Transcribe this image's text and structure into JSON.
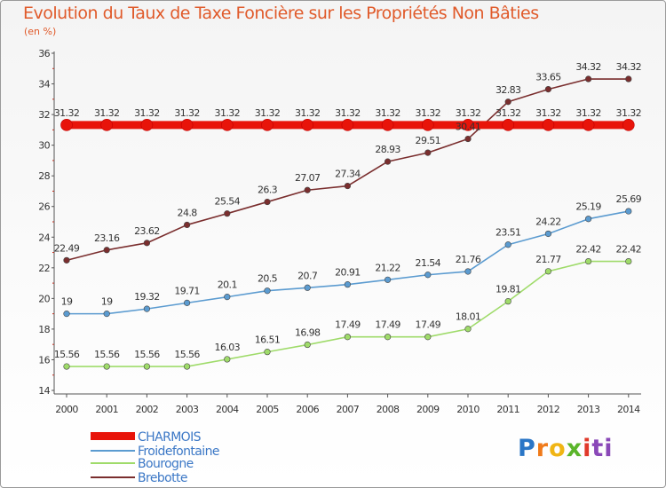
{
  "chart_data": {
    "type": "line",
    "title": "Evolution du Taux de Taxe Foncière sur les Propriétés Non Bâties",
    "ylabel": "(en %)",
    "xlabel": "",
    "ylim": [
      14,
      36
    ],
    "yticks": [
      "14",
      "16",
      "18",
      "20",
      "22",
      "24",
      "26",
      "28",
      "30",
      "32",
      "34",
      "36"
    ],
    "categories": [
      "2000",
      "2001",
      "2002",
      "2003",
      "2004",
      "2005",
      "2006",
      "2007",
      "2008",
      "2009",
      "2010",
      "2011",
      "2012",
      "2013",
      "2014"
    ],
    "series": [
      {
        "name": "CHARMOIS",
        "color": "#e8140a",
        "values": [
          31.32,
          31.32,
          31.32,
          31.32,
          31.32,
          31.32,
          31.32,
          31.32,
          31.32,
          31.32,
          31.32,
          31.32,
          31.32,
          31.32,
          31.32
        ],
        "labels": [
          "31.32",
          "31.32",
          "31.32",
          "31.32",
          "31.32",
          "31.32",
          "31.32",
          "31.32",
          "31.32",
          "31.32",
          "31.32",
          "31.32",
          "31.32",
          "31.32",
          "31.32"
        ]
      },
      {
        "name": "Froidefontaine",
        "color": "#5b9bd0",
        "values": [
          19,
          19,
          19.32,
          19.71,
          20.1,
          20.5,
          20.7,
          20.91,
          21.22,
          21.54,
          21.76,
          23.51,
          24.22,
          25.19,
          25.69
        ],
        "labels": [
          "19",
          "19",
          "19.32",
          "19.71",
          "20.1",
          "20.5",
          "20.7",
          "20.91",
          "21.22",
          "21.54",
          "21.76",
          "23.51",
          "24.22",
          "25.19",
          "25.69"
        ]
      },
      {
        "name": "Bourogne",
        "color": "#9fdb6a",
        "values": [
          15.56,
          15.56,
          15.56,
          15.56,
          16.03,
          16.51,
          16.98,
          17.49,
          17.49,
          17.49,
          18.01,
          19.81,
          21.77,
          22.42,
          22.42
        ],
        "labels": [
          "15.56",
          "15.56",
          "15.56",
          "15.56",
          "16.03",
          "16.51",
          "16.98",
          "17.49",
          "17.49",
          "17.49",
          "18.01",
          "19.81",
          "21.77",
          "22.42",
          "22.42"
        ]
      },
      {
        "name": "Brebotte",
        "color": "#7a2e2e",
        "values": [
          22.49,
          23.16,
          23.62,
          24.8,
          25.54,
          26.3,
          27.07,
          27.34,
          28.93,
          29.51,
          30.41,
          32.83,
          33.65,
          34.32,
          34.32
        ],
        "labels": [
          "22.49",
          "23.16",
          "23.62",
          "24.8",
          "25.54",
          "26.3",
          "27.07",
          "27.34",
          "28.93",
          "29.51",
          "30.41",
          "32.83",
          "33.65",
          "34.32",
          "34.32"
        ]
      }
    ],
    "legend_position": "bottom-left",
    "grid": false
  },
  "logo": {
    "letters": [
      "P",
      "r",
      "o",
      "x",
      "i",
      "ti"
    ]
  }
}
